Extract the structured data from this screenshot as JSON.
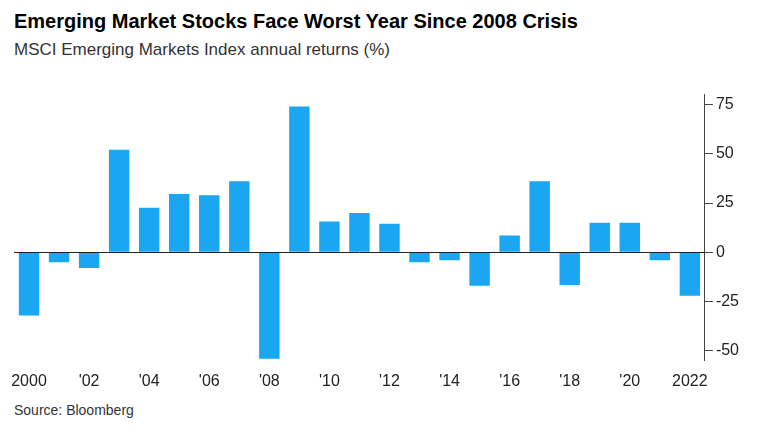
{
  "chart_data": {
    "type": "bar",
    "title": "Emerging Market Stocks Face Worst Year Since 2008 Crisis",
    "subtitle": "MSCI Emerging Markets Index annual returns (%)",
    "source": "Source: Bloomberg",
    "categories": [
      "2000",
      null,
      "'02",
      null,
      "'04",
      null,
      "'06",
      null,
      "'08",
      null,
      "'10",
      null,
      "'12",
      null,
      "'14",
      null,
      "'16",
      null,
      "'18",
      null,
      "'20",
      null,
      "2022"
    ],
    "values": [
      -32,
      -5,
      -8,
      52,
      22.6,
      29.6,
      29,
      36,
      -54,
      74,
      15.6,
      20,
      14.5,
      -5,
      -4,
      -17,
      8.6,
      36,
      -16.6,
      15,
      15,
      -4,
      -22
    ],
    "color": "#1ba6f2",
    "ylim": [
      -55,
      80
    ],
    "yticks": [
      -50,
      -25,
      0,
      25,
      50,
      75
    ],
    "grid": false
  }
}
